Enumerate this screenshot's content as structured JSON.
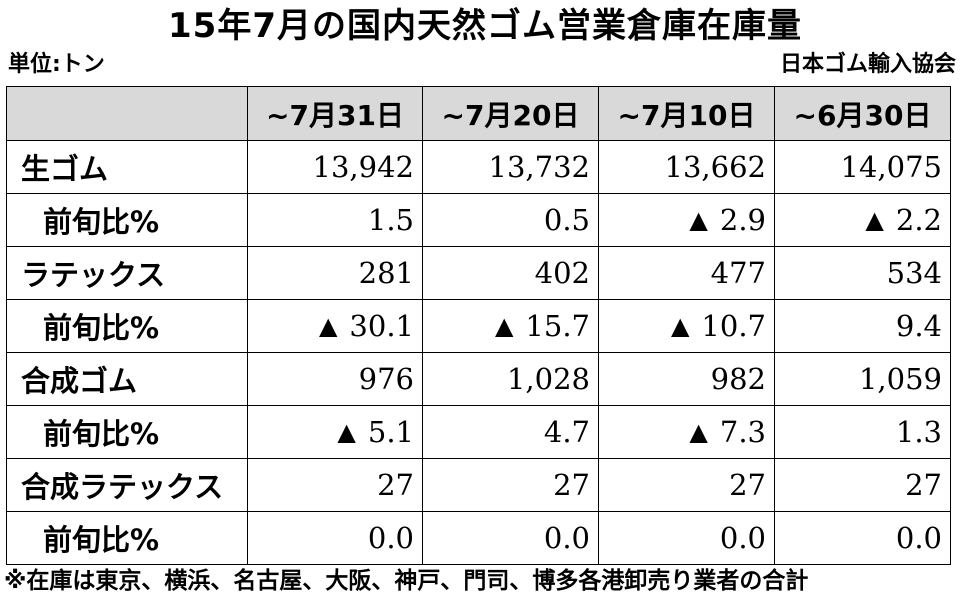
{
  "title": "15年7月の国内天然ゴム営業倉庫在庫量",
  "unit_label": "単位:トン",
  "source": "日本ゴム輸入協会",
  "table": {
    "columns": [
      "",
      "~7月31日",
      "~7月20日",
      "~7月10日",
      "~6月30日"
    ],
    "rows": [
      {
        "label": "生ゴム",
        "sub": false,
        "cells": [
          {
            "mark": "",
            "value": "13,942"
          },
          {
            "mark": "",
            "value": "13,732"
          },
          {
            "mark": "",
            "value": "13,662"
          },
          {
            "mark": "",
            "value": "14,075"
          }
        ]
      },
      {
        "label": "前旬比%",
        "sub": true,
        "cells": [
          {
            "mark": "",
            "value": "1.5"
          },
          {
            "mark": "",
            "value": "0.5"
          },
          {
            "mark": "▲",
            "value": "2.9"
          },
          {
            "mark": "▲",
            "value": "2.2"
          }
        ]
      },
      {
        "label": "ラテックス",
        "sub": false,
        "cells": [
          {
            "mark": "",
            "value": "281"
          },
          {
            "mark": "",
            "value": "402"
          },
          {
            "mark": "",
            "value": "477"
          },
          {
            "mark": "",
            "value": "534"
          }
        ]
      },
      {
        "label": "前旬比%",
        "sub": true,
        "cells": [
          {
            "mark": "▲",
            "value": "30.1"
          },
          {
            "mark": "▲",
            "value": "15.7"
          },
          {
            "mark": "▲",
            "value": "10.7"
          },
          {
            "mark": "",
            "value": "9.4"
          }
        ]
      },
      {
        "label": "合成ゴム",
        "sub": false,
        "cells": [
          {
            "mark": "",
            "value": "976"
          },
          {
            "mark": "",
            "value": "1,028"
          },
          {
            "mark": "",
            "value": "982"
          },
          {
            "mark": "",
            "value": "1,059"
          }
        ]
      },
      {
        "label": "前旬比%",
        "sub": true,
        "cells": [
          {
            "mark": "▲",
            "value": "5.1"
          },
          {
            "mark": "",
            "value": "4.7"
          },
          {
            "mark": "▲",
            "value": "7.3"
          },
          {
            "mark": "",
            "value": "1.3"
          }
        ]
      },
      {
        "label": "合成ラテックス",
        "sub": false,
        "cells": [
          {
            "mark": "",
            "value": "27"
          },
          {
            "mark": "",
            "value": "27"
          },
          {
            "mark": "",
            "value": "27"
          },
          {
            "mark": "",
            "value": "27"
          }
        ]
      },
      {
        "label": "前旬比%",
        "sub": true,
        "cells": [
          {
            "mark": "",
            "value": "0.0"
          },
          {
            "mark": "",
            "value": "0.0"
          },
          {
            "mark": "",
            "value": "0.0"
          },
          {
            "mark": "",
            "value": "0.0"
          }
        ]
      }
    ]
  },
  "footnote": "※在庫は東京、横浜、名古屋、大阪、神戸、門司、博多各港卸売り業者の合計"
}
